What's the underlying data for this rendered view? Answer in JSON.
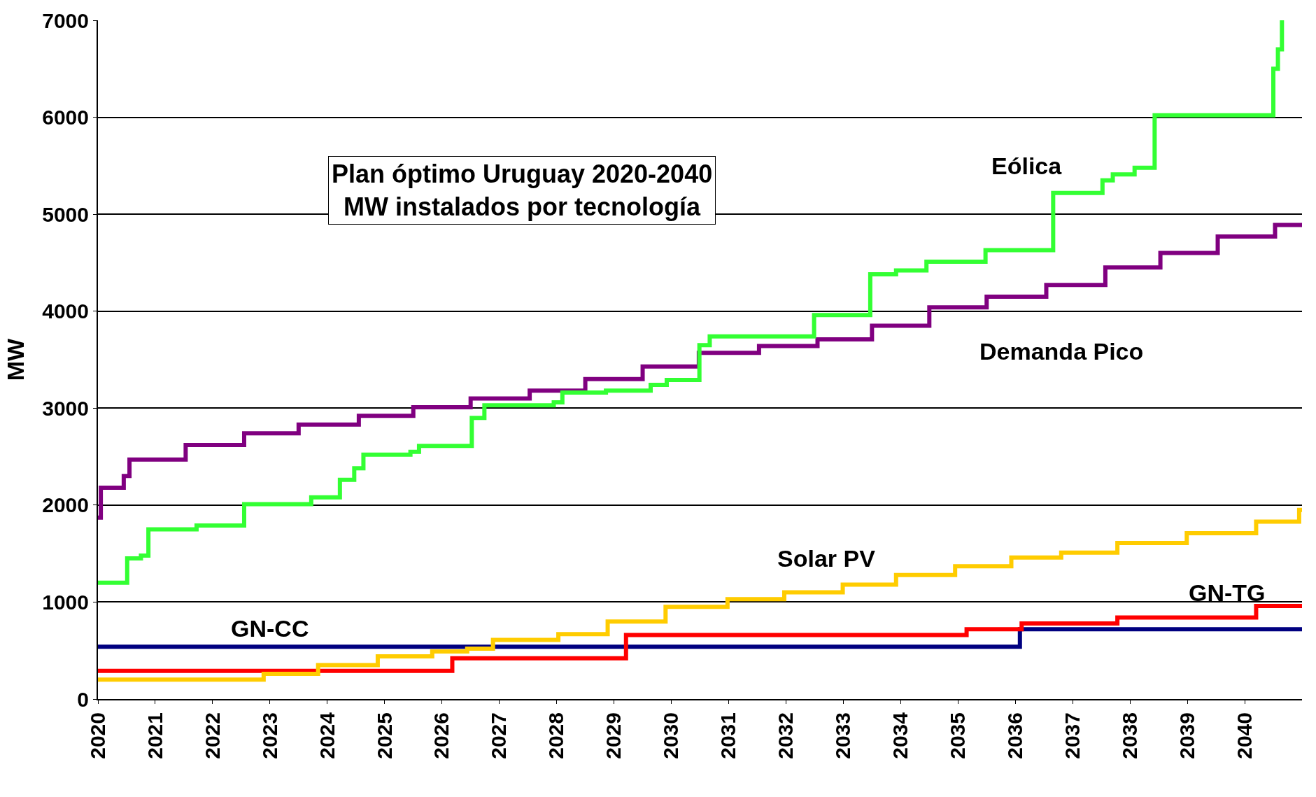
{
  "chart_data": {
    "type": "step",
    "title": "Plan óptimo Uruguay 2020-2040\nMW instalados por tecnología",
    "ylabel": "MW",
    "xlim": [
      2020,
      2041
    ],
    "xticks": [
      2020,
      2021,
      2022,
      2023,
      2024,
      2025,
      2026,
      2027,
      2028,
      2029,
      2030,
      2031,
      2032,
      2033,
      2034,
      2035,
      2036,
      2037,
      2038,
      2039,
      2040
    ],
    "ylim": [
      0,
      7000
    ],
    "yticks": [
      0,
      1000,
      2000,
      3000,
      4000,
      5000,
      6000,
      7000
    ],
    "grid": "y",
    "legend": false,
    "marker": "none",
    "line_style": "solid",
    "series": [
      {
        "name": "GN-CC",
        "color": "#000080",
        "x": [
          2020,
          2036.08,
          2041
        ],
        "values": [
          540,
          720,
          720
        ]
      },
      {
        "name": "GN-TG",
        "color": "#ff0000",
        "x": [
          2020,
          2026.18,
          2029.21,
          2035.15,
          2036.11,
          2037.78,
          2040.2,
          2041
        ],
        "values": [
          290,
          420,
          660,
          720,
          780,
          840,
          960,
          960
        ]
      },
      {
        "name": "Solar PV",
        "color": "#ffcc00",
        "x": [
          2020,
          2022.89,
          2023.84,
          2024.88,
          2025.83,
          2026.44,
          2026.89,
          2028.03,
          2028.89,
          2029.9,
          2030.98,
          2031.97,
          2032.99,
          2033.92,
          2034.95,
          2035.93,
          2036.8,
          2037.78,
          2038.99,
          2040.2,
          2040.95,
          2041
        ],
        "values": [
          200,
          260,
          350,
          440,
          490,
          520,
          610,
          670,
          800,
          950,
          1030,
          1100,
          1180,
          1280,
          1370,
          1460,
          1510,
          1610,
          1710,
          1830,
          1950,
          1950
        ]
      },
      {
        "name": "Demanda Pico",
        "color": "#800080",
        "x": [
          2020,
          2020.05,
          2020.45,
          2020.55,
          2021.53,
          2022.55,
          2023.5,
          2024.55,
          2025.5,
          2026.5,
          2027.53,
          2028.5,
          2029.5,
          2030.48,
          2031.53,
          2032.55,
          2033.5,
          2034.5,
          2035.5,
          2036.54,
          2037.57,
          2038.53,
          2039.53,
          2040.53,
          2041
        ],
        "values": [
          1870,
          2180,
          2300,
          2470,
          2620,
          2740,
          2830,
          2920,
          3010,
          3100,
          3180,
          3300,
          3430,
          3570,
          3640,
          3710,
          3850,
          4040,
          4150,
          4270,
          4450,
          4600,
          4770,
          4890,
          4890
        ]
      },
      {
        "name": "Eólica",
        "color": "#33ff33",
        "x": [
          2020,
          2020.51,
          2020.75,
          2020.88,
          2021.72,
          2022.55,
          2023.72,
          2024.22,
          2024.47,
          2024.63,
          2025.45,
          2025.6,
          2026.52,
          2026.74,
          2027.95,
          2028.1,
          2028.86,
          2029.64,
          2029.92,
          2030.49,
          2030.67,
          2032.49,
          2033.47,
          2033.92,
          2034.45,
          2035.48,
          2036.66,
          2037.52,
          2037.7,
          2038.08,
          2038.43,
          2040.5,
          2040.58,
          2040.65
        ],
        "values": [
          1200,
          1450,
          1480,
          1750,
          1790,
          2010,
          2080,
          2260,
          2380,
          2520,
          2550,
          2610,
          2900,
          3030,
          3060,
          3160,
          3180,
          3240,
          3290,
          3650,
          3740,
          3960,
          4380,
          4420,
          4510,
          4630,
          5220,
          5350,
          5410,
          5480,
          6020,
          6500,
          6700,
          7000
        ]
      }
    ]
  }
}
